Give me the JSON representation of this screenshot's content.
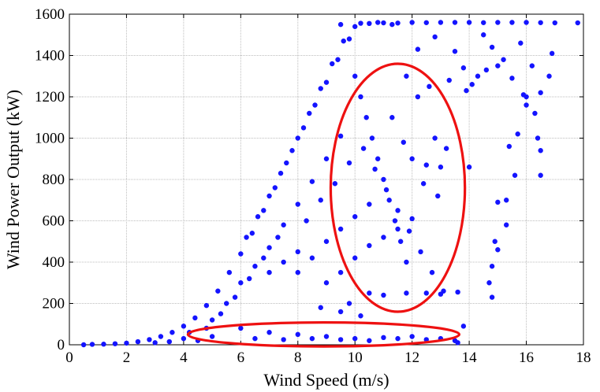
{
  "chart_data": {
    "type": "scatter",
    "title": "",
    "xlabel": "Wind Speed (m/s)",
    "ylabel": "Wind Power Output (kW)",
    "xlim": [
      0,
      18
    ],
    "ylim": [
      0,
      1600
    ],
    "x_ticks": [
      0,
      2,
      4,
      6,
      8,
      10,
      12,
      14,
      16,
      18
    ],
    "y_ticks": [
      0,
      200,
      400,
      600,
      800,
      1000,
      1200,
      1400,
      1600
    ],
    "grid": true,
    "series": [
      {
        "color": "#1414ff",
        "description_points": "approximate sampled points read from the scatter",
        "points": [
          [
            0.5,
            0
          ],
          [
            0.8,
            2
          ],
          [
            1.2,
            3
          ],
          [
            1.6,
            5
          ],
          [
            2.0,
            8
          ],
          [
            2.4,
            15
          ],
          [
            2.8,
            25
          ],
          [
            3.2,
            40
          ],
          [
            3.6,
            60
          ],
          [
            4.0,
            90
          ],
          [
            4.4,
            130
          ],
          [
            4.8,
            190
          ],
          [
            5.2,
            260
          ],
          [
            5.6,
            350
          ],
          [
            6.0,
            440
          ],
          [
            6.4,
            540
          ],
          [
            6.8,
            650
          ],
          [
            7.2,
            760
          ],
          [
            7.6,
            880
          ],
          [
            8.0,
            1000
          ],
          [
            8.4,
            1120
          ],
          [
            8.8,
            1240
          ],
          [
            9.2,
            1360
          ],
          [
            9.6,
            1470
          ],
          [
            10.0,
            1540
          ],
          [
            10.5,
            1555
          ],
          [
            11.0,
            1558
          ],
          [
            12.0,
            1560
          ],
          [
            13.0,
            1560
          ],
          [
            14.0,
            1560
          ],
          [
            15.0,
            1560
          ],
          [
            16.0,
            1560
          ],
          [
            17.0,
            1558
          ],
          [
            17.8,
            1558
          ],
          [
            9.5,
            1550
          ],
          [
            10.2,
            1556
          ],
          [
            11.5,
            1557
          ],
          [
            12.5,
            1559
          ],
          [
            13.5,
            1560
          ],
          [
            14.5,
            1559
          ],
          [
            15.5,
            1560
          ],
          [
            16.5,
            1559
          ],
          [
            5.0,
            120
          ],
          [
            5.5,
            200
          ],
          [
            6.0,
            300
          ],
          [
            6.5,
            380
          ],
          [
            7.0,
            470
          ],
          [
            7.5,
            580
          ],
          [
            8.0,
            680
          ],
          [
            8.5,
            790
          ],
          [
            9.0,
            900
          ],
          [
            9.5,
            1010
          ],
          [
            6.2,
            520
          ],
          [
            6.6,
            620
          ],
          [
            7.0,
            720
          ],
          [
            7.4,
            830
          ],
          [
            7.8,
            940
          ],
          [
            8.2,
            1050
          ],
          [
            8.6,
            1160
          ],
          [
            9.0,
            1270
          ],
          [
            9.4,
            1380
          ],
          [
            9.8,
            1480
          ],
          [
            10.0,
            1300
          ],
          [
            10.2,
            1200
          ],
          [
            10.4,
            1100
          ],
          [
            10.6,
            1000
          ],
          [
            10.8,
            900
          ],
          [
            11.0,
            800
          ],
          [
            11.2,
            700
          ],
          [
            11.4,
            600
          ],
          [
            11.6,
            500
          ],
          [
            11.8,
            400
          ],
          [
            10.3,
            950
          ],
          [
            10.7,
            850
          ],
          [
            11.1,
            750
          ],
          [
            11.5,
            650
          ],
          [
            11.9,
            550
          ],
          [
            12.3,
            450
          ],
          [
            12.7,
            350
          ],
          [
            13.1,
            260
          ],
          [
            12.0,
            900
          ],
          [
            12.5,
            870
          ],
          [
            13.0,
            860
          ],
          [
            12.8,
            1000
          ],
          [
            13.2,
            950
          ],
          [
            12.2,
            1200
          ],
          [
            12.6,
            1250
          ],
          [
            11.8,
            1300
          ],
          [
            12.4,
            780
          ],
          [
            12.9,
            720
          ],
          [
            11.3,
            1100
          ],
          [
            11.7,
            980
          ],
          [
            9.8,
            200
          ],
          [
            10.5,
            250
          ],
          [
            11.0,
            240
          ],
          [
            11.8,
            250
          ],
          [
            12.5,
            250
          ],
          [
            13.0,
            245
          ],
          [
            13.6,
            255
          ],
          [
            8.8,
            180
          ],
          [
            9.5,
            160
          ],
          [
            10.2,
            140
          ],
          [
            6.0,
            80
          ],
          [
            7.0,
            60
          ],
          [
            8.0,
            50
          ],
          [
            9.0,
            40
          ],
          [
            10.0,
            30
          ],
          [
            11.0,
            35
          ],
          [
            12.0,
            40
          ],
          [
            13.0,
            30
          ],
          [
            13.5,
            20
          ],
          [
            5.0,
            40
          ],
          [
            4.5,
            20
          ],
          [
            6.5,
            30
          ],
          [
            7.5,
            25
          ],
          [
            8.5,
            30
          ],
          [
            9.5,
            25
          ],
          [
            10.5,
            20
          ],
          [
            11.5,
            30
          ],
          [
            12.5,
            25
          ],
          [
            13.8,
            90
          ],
          [
            13.6,
            10
          ],
          [
            14.0,
            860
          ],
          [
            14.5,
            1500
          ],
          [
            14.8,
            1440
          ],
          [
            15.0,
            1350
          ],
          [
            15.2,
            1380
          ],
          [
            15.5,
            1290
          ],
          [
            15.8,
            1460
          ],
          [
            16.0,
            1200
          ],
          [
            16.2,
            1350
          ],
          [
            16.5,
            1220
          ],
          [
            16.8,
            1300
          ],
          [
            16.9,
            1410
          ],
          [
            15.6,
            820
          ],
          [
            15.4,
            960
          ],
          [
            15.7,
            1020
          ],
          [
            16.4,
            1000
          ],
          [
            16.5,
            940
          ],
          [
            16.5,
            820
          ],
          [
            15.3,
            700
          ],
          [
            15.0,
            690
          ],
          [
            14.9,
            500
          ],
          [
            15.0,
            460
          ],
          [
            14.8,
            380
          ],
          [
            14.7,
            300
          ],
          [
            14.8,
            230
          ],
          [
            15.3,
            580
          ],
          [
            16.3,
            1120
          ],
          [
            16.0,
            1160
          ],
          [
            15.9,
            1210
          ],
          [
            14.1,
            1260
          ],
          [
            10.8,
            1560
          ],
          [
            11.3,
            1550
          ],
          [
            12.8,
            1490
          ],
          [
            13.5,
            1420
          ],
          [
            13.8,
            1340
          ],
          [
            14.3,
            1300
          ],
          [
            14.6,
            1330
          ],
          [
            13.9,
            1230
          ],
          [
            13.3,
            1280
          ],
          [
            12.2,
            1430
          ],
          [
            8.0,
            350
          ],
          [
            8.5,
            420
          ],
          [
            9.0,
            500
          ],
          [
            9.5,
            560
          ],
          [
            10.0,
            620
          ],
          [
            10.5,
            680
          ],
          [
            8.3,
            600
          ],
          [
            8.8,
            700
          ],
          [
            9.3,
            780
          ],
          [
            9.8,
            880
          ],
          [
            7.0,
            350
          ],
          [
            7.5,
            400
          ],
          [
            8.0,
            450
          ],
          [
            9.0,
            300
          ],
          [
            9.5,
            350
          ],
          [
            10.0,
            420
          ],
          [
            10.5,
            480
          ],
          [
            11.0,
            520
          ],
          [
            11.5,
            560
          ],
          [
            12.0,
            610
          ],
          [
            3.0,
            10
          ],
          [
            3.5,
            15
          ],
          [
            4.0,
            30
          ],
          [
            4.2,
            60
          ],
          [
            4.8,
            80
          ],
          [
            5.3,
            150
          ],
          [
            5.8,
            230
          ],
          [
            6.3,
            320
          ],
          [
            6.8,
            420
          ],
          [
            7.3,
            520
          ]
        ]
      }
    ],
    "annotations": [
      {
        "shape": "ellipse",
        "color": "#ee1111",
        "center_x": 11.5,
        "center_y": 760,
        "rx_data": 2.35,
        "ry_data": 600
      },
      {
        "shape": "ellipse",
        "color": "#ee1111",
        "center_x": 8.9,
        "center_y": 50,
        "rx_data": 4.75,
        "ry_data": 58
      }
    ]
  }
}
